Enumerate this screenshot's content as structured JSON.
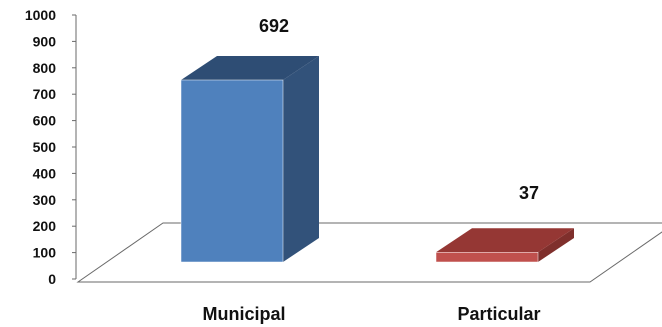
{
  "chart_data": {
    "type": "bar",
    "style": "3d-column",
    "categories": [
      "Municipal",
      "Particular"
    ],
    "values": [
      692,
      37
    ],
    "data_labels": [
      "692",
      "37"
    ],
    "ylim": [
      0,
      1000
    ],
    "yticks": [
      0,
      100,
      200,
      300,
      400,
      500,
      600,
      700,
      800,
      900,
      1000
    ],
    "ytick_labels": [
      "0",
      "100",
      "200",
      "300",
      "400",
      "500",
      "600",
      "700",
      "800",
      "900",
      "1000"
    ],
    "grid": false,
    "legend": "none",
    "title": "",
    "xlabel": "",
    "ylabel": "",
    "colors": {
      "Municipal": {
        "front": "#4f81bd",
        "side": "#32527a",
        "top": "#2e4d74"
      },
      "Particular": {
        "front": "#c0504d",
        "side": "#7f2f2c",
        "top": "#953734"
      },
      "axis": "#6a6a6a"
    }
  }
}
